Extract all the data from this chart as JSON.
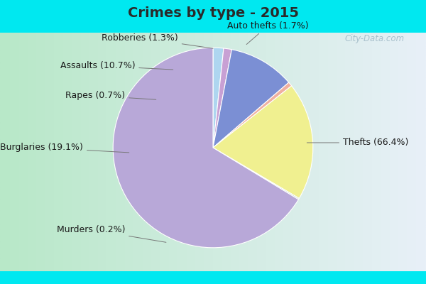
{
  "title": "Crimes by type - 2015",
  "slices": [
    {
      "label": "Auto thefts",
      "pct": 1.7,
      "color": "#aed6f0"
    },
    {
      "label": "Robberies",
      "pct": 1.3,
      "color": "#c8a0d4"
    },
    {
      "label": "Assaults",
      "pct": 10.7,
      "color": "#7b8fd4"
    },
    {
      "label": "Rapes",
      "pct": 0.7,
      "color": "#f0b0a0"
    },
    {
      "label": "Burglaries",
      "pct": 19.1,
      "color": "#f0f090"
    },
    {
      "label": "Murders",
      "pct": 0.2,
      "color": "#b8d4b8"
    },
    {
      "label": "Thefts",
      "pct": 66.4,
      "color": "#b8a8d8"
    }
  ],
  "startangle": 90,
  "title_fontsize": 14,
  "label_fontsize": 9,
  "top_bar_color": "#00e8f0",
  "top_bar_height": 0.115,
  "bg_color_left": "#b8e8c8",
  "bg_color_right": "#e8f0f8",
  "watermark": "City-Data.com"
}
